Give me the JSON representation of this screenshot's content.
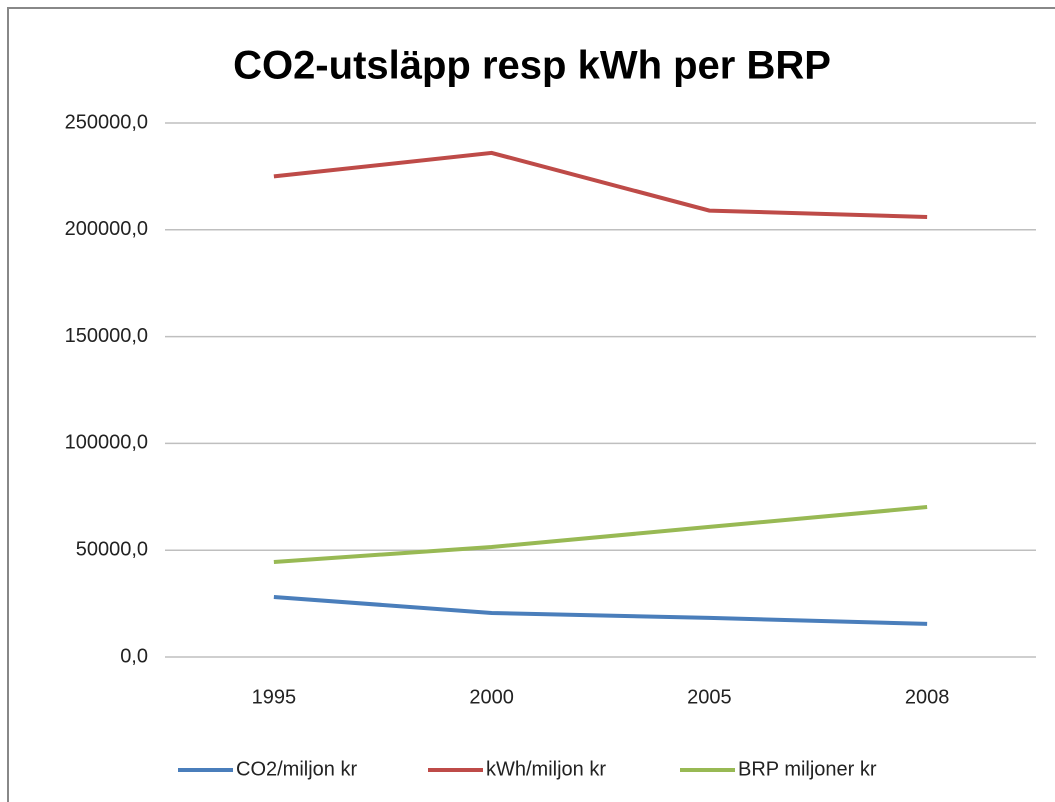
{
  "chart_data": {
    "type": "line",
    "title": "CO2-utsläpp resp kWh per BRP",
    "categories": [
      "1995",
      "2000",
      "2005",
      "2008"
    ],
    "series": [
      {
        "name": "CO2/miljon kr",
        "color": "#4a7ebb",
        "values": [
          28100,
          20600,
          18300,
          15500
        ]
      },
      {
        "name": "kWh/miljon kr",
        "color": "#be4b48",
        "values": [
          225000,
          236000,
          209000,
          206000
        ]
      },
      {
        "name": "BRP miljoner kr",
        "color": "#98b954",
        "values": [
          44500,
          51500,
          60900,
          70200
        ]
      }
    ],
    "ylim": [
      0,
      250000
    ],
    "yticks": [
      {
        "value": 0,
        "label": "0,0"
      },
      {
        "value": 50000,
        "label": "50000,0"
      },
      {
        "value": 100000,
        "label": "100000,0"
      },
      {
        "value": 150000,
        "label": "150000,0"
      },
      {
        "value": 200000,
        "label": "200000,0"
      },
      {
        "value": 250000,
        "label": "250000,0"
      }
    ],
    "grid": true,
    "legend": "bottom"
  }
}
